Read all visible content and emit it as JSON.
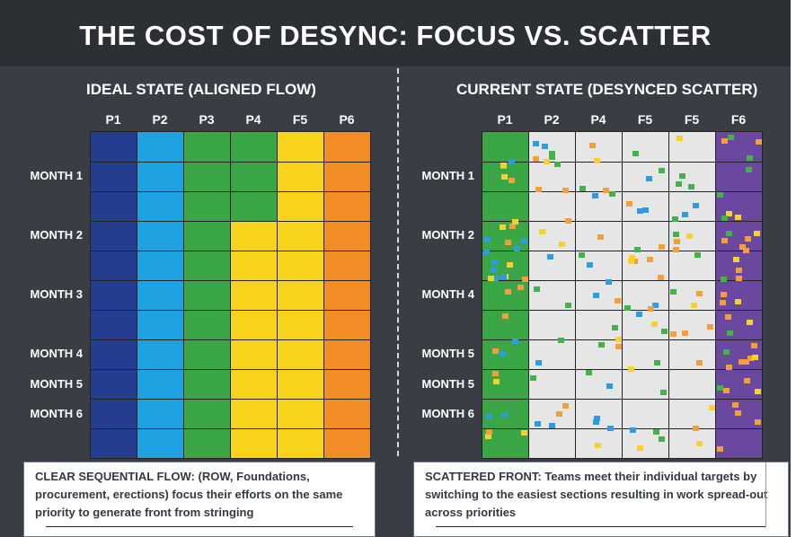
{
  "title": "THE COST OF DESYNC: FOCUS VS. SCATTER",
  "colors": {
    "background": "#3a3e44",
    "title_bar": "#2c2f34",
    "empty_cell": "#e6e6e6",
    "grid_line": "#232323",
    "palette": {
      "navy": "#253d8e",
      "blue": "#1fa2e2",
      "green": "#3aa646",
      "yellow": "#f7d31c",
      "orange": "#f28c24",
      "purple": "#6a48a0"
    },
    "dot_colors": [
      "#f2a03a",
      "#42b24a",
      "#2b9de0",
      "#f5d230"
    ]
  },
  "ideal": {
    "subtitle": "IDEAL STATE (ALIGNED FLOW)",
    "columns": [
      "P1",
      "P2",
      "P3",
      "P4",
      "F5",
      "P6"
    ],
    "row_labels": [
      "",
      "MONTH 1",
      "",
      "MONTH 2",
      "",
      "MONTH 3",
      "",
      "MONTH 4",
      "MONTH 5",
      "MONTH 6",
      ""
    ],
    "cell_colors": [
      [
        "navy",
        "blue",
        "green",
        "green",
        "yellow",
        "orange"
      ],
      [
        "navy",
        "blue",
        "green",
        "green",
        "yellow",
        "orange"
      ],
      [
        "navy",
        "blue",
        "green",
        "green",
        "yellow",
        "orange"
      ],
      [
        "navy",
        "blue",
        "green",
        "yellow",
        "yellow",
        "orange"
      ],
      [
        "navy",
        "blue",
        "green",
        "yellow",
        "yellow",
        "orange"
      ],
      [
        "navy",
        "blue",
        "green",
        "yellow",
        "yellow",
        "orange"
      ],
      [
        "navy",
        "blue",
        "green",
        "yellow",
        "yellow",
        "orange"
      ],
      [
        "navy",
        "blue",
        "green",
        "yellow",
        "yellow",
        "orange"
      ],
      [
        "navy",
        "blue",
        "green",
        "yellow",
        "yellow",
        "orange"
      ],
      [
        "navy",
        "blue",
        "green",
        "yellow",
        "yellow",
        "orange"
      ],
      [
        "navy",
        "blue",
        "green",
        "yellow",
        "yellow",
        "orange"
      ]
    ]
  },
  "current": {
    "subtitle": "CURRENT STATE (DESYNCED SCATTER)",
    "columns": [
      "P1",
      "P2",
      "P4",
      "F5",
      "F5",
      "F6"
    ],
    "row_labels": [
      "",
      "MONTH 1",
      "",
      "MONTH 2",
      "",
      "MONTH 4",
      "",
      "MONTH 5",
      "MONTH 5",
      "MONTH 6",
      ""
    ],
    "column_fill": [
      "green",
      "empty",
      "empty",
      "empty",
      "empty",
      "purple"
    ]
  },
  "captions": {
    "left": {
      "label": "CLEAR SEQUENTIAL FLOW: (ROW, Foundations, procurement, erections) focus their efforts on the same priority to generate front from stringing"
    },
    "right": {
      "label": "SCATTERED FRONT: Teams meet their individual targets by switching to the easiest sections resulting in work spread-out across priorities"
    }
  }
}
